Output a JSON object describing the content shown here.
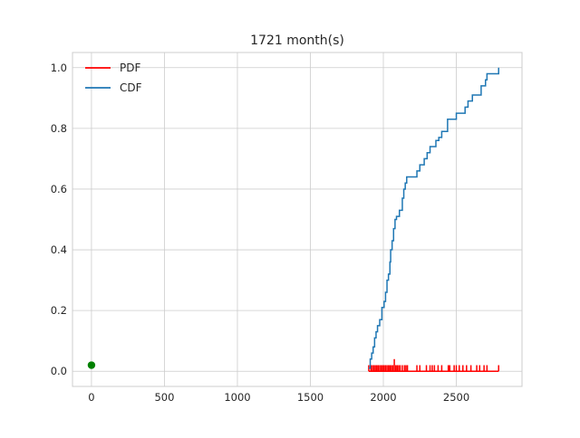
{
  "chart_data": {
    "type": "line",
    "title": "1721 month(s)",
    "xlabel": "",
    "ylabel": "",
    "xlim": [
      -130,
      2950
    ],
    "ylim": [
      -0.05,
      1.05
    ],
    "xticks": [
      0,
      500,
      1000,
      1500,
      2000,
      2500
    ],
    "yticks": [
      0.0,
      0.2,
      0.4,
      0.6,
      0.8,
      1.0
    ],
    "xtick_labels": [
      "0",
      "500",
      "1000",
      "1500",
      "2000",
      "2500"
    ],
    "ytick_labels": [
      "0.0",
      "0.2",
      "0.4",
      "0.6",
      "0.8",
      "1.0"
    ],
    "grid": true,
    "legend_position": "top-left",
    "legend": [
      {
        "label": "PDF",
        "color": "#ff0000"
      },
      {
        "label": "CDF",
        "color": "#1f77b4"
      }
    ],
    "series": [
      {
        "name": "PDF",
        "color": "#ff0000",
        "kind": "spikes",
        "baseline": 0.0,
        "x": [
          1900,
          1915,
          1925,
          1935,
          1945,
          1955,
          1965,
          1975,
          1985,
          1995,
          2005,
          2015,
          2025,
          2035,
          2045,
          2055,
          2065,
          2075,
          2085,
          2095,
          2105,
          2115,
          2130,
          2145,
          2155,
          2165,
          2230,
          2250,
          2295,
          2320,
          2335,
          2350,
          2375,
          2400,
          2445,
          2455,
          2485,
          2500,
          2520,
          2545,
          2570,
          2600,
          2640,
          2660,
          2690,
          2710,
          2790
        ],
        "values": [
          0.02,
          0.02,
          0.02,
          0.02,
          0.02,
          0.02,
          0.02,
          0.02,
          0.02,
          0.02,
          0.02,
          0.02,
          0.02,
          0.02,
          0.02,
          0.02,
          0.02,
          0.04,
          0.02,
          0.02,
          0.02,
          0.02,
          0.02,
          0.02,
          0.02,
          0.02,
          0.02,
          0.02,
          0.02,
          0.02,
          0.02,
          0.02,
          0.02,
          0.02,
          0.02,
          0.02,
          0.02,
          0.02,
          0.02,
          0.02,
          0.02,
          0.02,
          0.02,
          0.02,
          0.02,
          0.02,
          0.02
        ],
        "x_end": 2790
      },
      {
        "name": "CDF",
        "color": "#1f77b4",
        "kind": "step",
        "x": [
          1900,
          1910,
          1920,
          1930,
          1940,
          1950,
          1960,
          1975,
          1990,
          2005,
          2015,
          2025,
          2035,
          2045,
          2050,
          2060,
          2070,
          2080,
          2090,
          2110,
          2130,
          2140,
          2150,
          2160,
          2170,
          2230,
          2250,
          2280,
          2300,
          2320,
          2340,
          2360,
          2380,
          2400,
          2440,
          2460,
          2500,
          2520,
          2560,
          2580,
          2610,
          2650,
          2670,
          2700,
          2710,
          2780,
          2790
        ],
        "values": [
          0.01,
          0.04,
          0.06,
          0.08,
          0.11,
          0.13,
          0.15,
          0.17,
          0.21,
          0.23,
          0.26,
          0.3,
          0.32,
          0.36,
          0.4,
          0.43,
          0.47,
          0.5,
          0.51,
          0.53,
          0.57,
          0.6,
          0.62,
          0.64,
          0.64,
          0.66,
          0.68,
          0.7,
          0.72,
          0.74,
          0.74,
          0.76,
          0.77,
          0.79,
          0.83,
          0.83,
          0.85,
          0.85,
          0.87,
          0.89,
          0.91,
          0.91,
          0.94,
          0.96,
          0.98,
          0.98,
          1.0
        ]
      },
      {
        "name": "",
        "color": "#008000",
        "kind": "point",
        "x": [
          0
        ],
        "values": [
          0.02
        ]
      }
    ]
  }
}
